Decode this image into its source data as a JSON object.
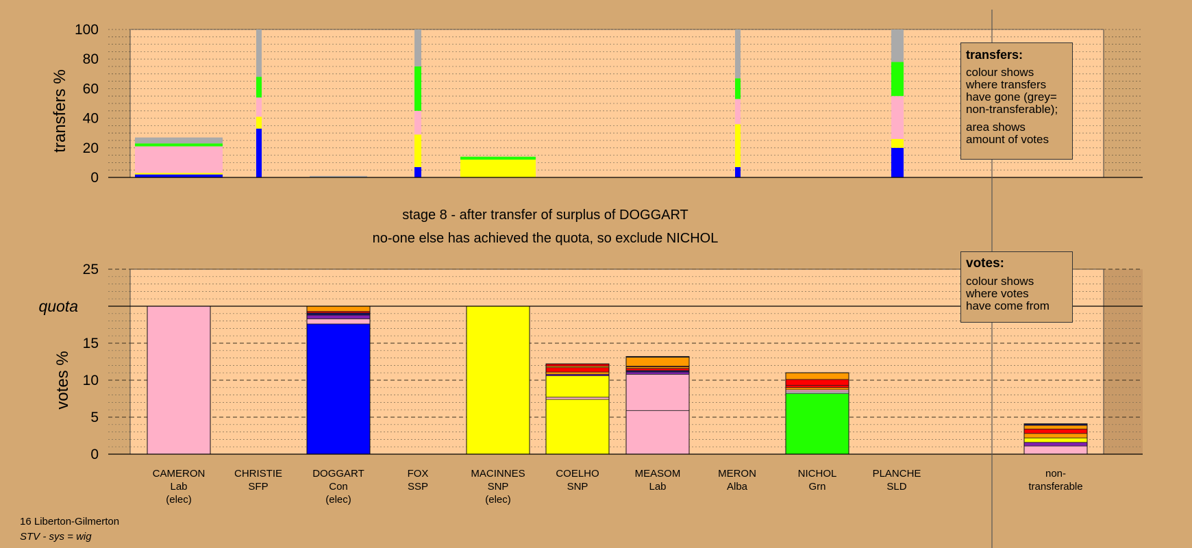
{
  "chart_data": [
    {
      "type": "bar",
      "ylabel": "transfers %",
      "ylim": [
        0,
        100
      ],
      "yticks": [
        0,
        20,
        40,
        60,
        80,
        100
      ],
      "colors": {
        "blue": "#0000ff",
        "yellow": "#ffff00",
        "pink": "#ffb0c8",
        "green": "#22ff00",
        "grey": "#aaaaaa"
      },
      "bars": [
        {
          "candidate": "CAMERON",
          "segments": [
            {
              "color": "blue",
              "value": 2
            },
            {
              "color": "yellow",
              "value": 1
            },
            {
              "color": "pink",
              "value": 18
            },
            {
              "color": "green",
              "value": 2
            },
            {
              "color": "grey",
              "value": 4
            }
          ]
        },
        {
          "candidate": "CHRISTIE",
          "segments": [
            {
              "color": "blue",
              "value": 33
            },
            {
              "color": "yellow",
              "value": 8
            },
            {
              "color": "pink",
              "value": 13
            },
            {
              "color": "green",
              "value": 14
            },
            {
              "color": "grey",
              "value": 32
            }
          ]
        },
        {
          "candidate": "DOGGART",
          "segments": [
            {
              "color": "grey",
              "value": 1
            }
          ]
        },
        {
          "candidate": "FOX",
          "segments": [
            {
              "color": "blue",
              "value": 7
            },
            {
              "color": "yellow",
              "value": 22
            },
            {
              "color": "pink",
              "value": 16
            },
            {
              "color": "green",
              "value": 30
            },
            {
              "color": "grey",
              "value": 25
            }
          ]
        },
        {
          "candidate": "MACINNES",
          "segments": [
            {
              "color": "yellow",
              "value": 12
            },
            {
              "color": "green",
              "value": 2
            }
          ]
        },
        {
          "candidate": "COELHO",
          "segments": []
        },
        {
          "candidate": "MEASOM",
          "segments": []
        },
        {
          "candidate": "MERON",
          "segments": [
            {
              "color": "blue",
              "value": 7
            },
            {
              "color": "yellow",
              "value": 29
            },
            {
              "color": "pink",
              "value": 17
            },
            {
              "color": "green",
              "value": 14
            },
            {
              "color": "grey",
              "value": 33
            }
          ]
        },
        {
          "candidate": "NICHOL",
          "segments": []
        },
        {
          "candidate": "PLANCHE",
          "segments": [
            {
              "color": "blue",
              "value": 20
            },
            {
              "color": "yellow",
              "value": 6
            },
            {
              "color": "pink",
              "value": 29
            },
            {
              "color": "green",
              "value": 23
            },
            {
              "color": "grey",
              "value": 22
            }
          ]
        }
      ]
    },
    {
      "type": "bar",
      "ylabel": "votes %",
      "ylim": [
        0,
        25
      ],
      "yticks": [
        0,
        5,
        10,
        15,
        20,
        25
      ],
      "quota": 20,
      "quota_label": "quota",
      "categories": [
        {
          "name": "CAMERON",
          "party": "Lab",
          "status": "(elec)"
        },
        {
          "name": "CHRISTIE",
          "party": "SFP",
          "status": ""
        },
        {
          "name": "DOGGART",
          "party": "Con",
          "status": "(elec)"
        },
        {
          "name": "FOX",
          "party": "SSP",
          "status": ""
        },
        {
          "name": "MACINNES",
          "party": "SNP",
          "status": "(elec)"
        },
        {
          "name": "COELHO",
          "party": "SNP",
          "status": ""
        },
        {
          "name": "MEASOM",
          "party": "Lab",
          "status": ""
        },
        {
          "name": "MERON",
          "party": "Alba",
          "status": ""
        },
        {
          "name": "NICHOL",
          "party": "Grn",
          "status": ""
        },
        {
          "name": "PLANCHE",
          "party": "SLD",
          "status": ""
        }
      ],
      "nontransferable_label": [
        "non-",
        "transferable"
      ],
      "colors": {
        "blue": "#0000ff",
        "yellow": "#ffff00",
        "pink": "#ffb0c8",
        "green": "#22ff00",
        "purple": "#8020b0",
        "red": "#ff0000",
        "orange": "#ff9900",
        "navy": "#101060",
        "white": "#ffffff"
      },
      "bars": [
        {
          "candidate": "CAMERON",
          "segments": [
            {
              "color": "pink",
              "value": 20
            }
          ]
        },
        {
          "candidate": "CHRISTIE",
          "segments": []
        },
        {
          "candidate": "DOGGART",
          "segments": [
            {
              "color": "blue",
              "value": 17.6
            },
            {
              "color": "pink",
              "value": 0.7
            },
            {
              "color": "purple",
              "value": 0.5
            },
            {
              "color": "navy",
              "value": 0.3
            },
            {
              "color": "red",
              "value": 0.2
            },
            {
              "color": "orange",
              "value": 0.7
            }
          ]
        },
        {
          "candidate": "FOX",
          "segments": []
        },
        {
          "candidate": "MACINNES",
          "segments": [
            {
              "color": "yellow",
              "value": 20
            }
          ]
        },
        {
          "candidate": "COELHO",
          "segments": [
            {
              "color": "yellow",
              "value": 7.4
            },
            {
              "color": "pink",
              "value": 0.3
            },
            {
              "color": "yellow",
              "value": 2.9
            },
            {
              "color": "purple",
              "value": 0.2
            },
            {
              "color": "orange",
              "value": 0.3
            },
            {
              "color": "red",
              "value": 0.6
            },
            {
              "color": "orange",
              "value": 0.2
            },
            {
              "color": "red",
              "value": 0.3
            }
          ]
        },
        {
          "candidate": "MEASOM",
          "segments": [
            {
              "color": "pink",
              "value": 5.9
            },
            {
              "color": "pink",
              "value": 4.9
            },
            {
              "color": "purple",
              "value": 0.3
            },
            {
              "color": "navy",
              "value": 0.2
            },
            {
              "color": "red",
              "value": 0.3
            },
            {
              "color": "orange",
              "value": 0.2
            },
            {
              "color": "red",
              "value": 0.1
            },
            {
              "color": "orange",
              "value": 1.2
            },
            {
              "color": "navy",
              "value": 0.1
            }
          ]
        },
        {
          "candidate": "MERON",
          "segments": []
        },
        {
          "candidate": "NICHOL",
          "segments": [
            {
              "color": "green",
              "value": 8.2
            },
            {
              "color": "white",
              "value": 0.2
            },
            {
              "color": "pink",
              "value": 0.3
            },
            {
              "color": "orange",
              "value": 0.3
            },
            {
              "color": "red",
              "value": 0.3
            },
            {
              "color": "red",
              "value": 0.8
            },
            {
              "color": "orange",
              "value": 0.9
            }
          ]
        },
        {
          "candidate": "PLANCHE",
          "segments": []
        },
        {
          "candidate": "non-transferable",
          "segments": [
            {
              "color": "pink",
              "value": 1.1
            },
            {
              "color": "purple",
              "value": 0.5
            },
            {
              "color": "yellow",
              "value": 0.6
            },
            {
              "color": "orange",
              "value": 0.6
            },
            {
              "color": "red",
              "value": 0.6
            },
            {
              "color": "orange",
              "value": 0.5
            },
            {
              "color": "navy",
              "value": 0.2
            }
          ]
        }
      ]
    }
  ],
  "stage_title": "stage 8 - after transfer of surplus of DOGGART",
  "stage_subtitle": "no-one else has achieved the quota, so exclude NICHOL",
  "transfers_box": {
    "heading": "transfers:",
    "lines1": [
      "colour shows",
      "where transfers",
      "have gone (grey=",
      "non-transferable);"
    ],
    "lines2": [
      "area shows",
      "amount of votes"
    ]
  },
  "votes_box": {
    "heading": "votes:",
    "lines": [
      "colour shows",
      "where votes",
      "have come from"
    ]
  },
  "footer": {
    "ward": "16 Liberton-Gilmerton",
    "system": "STV - sys = wig"
  }
}
